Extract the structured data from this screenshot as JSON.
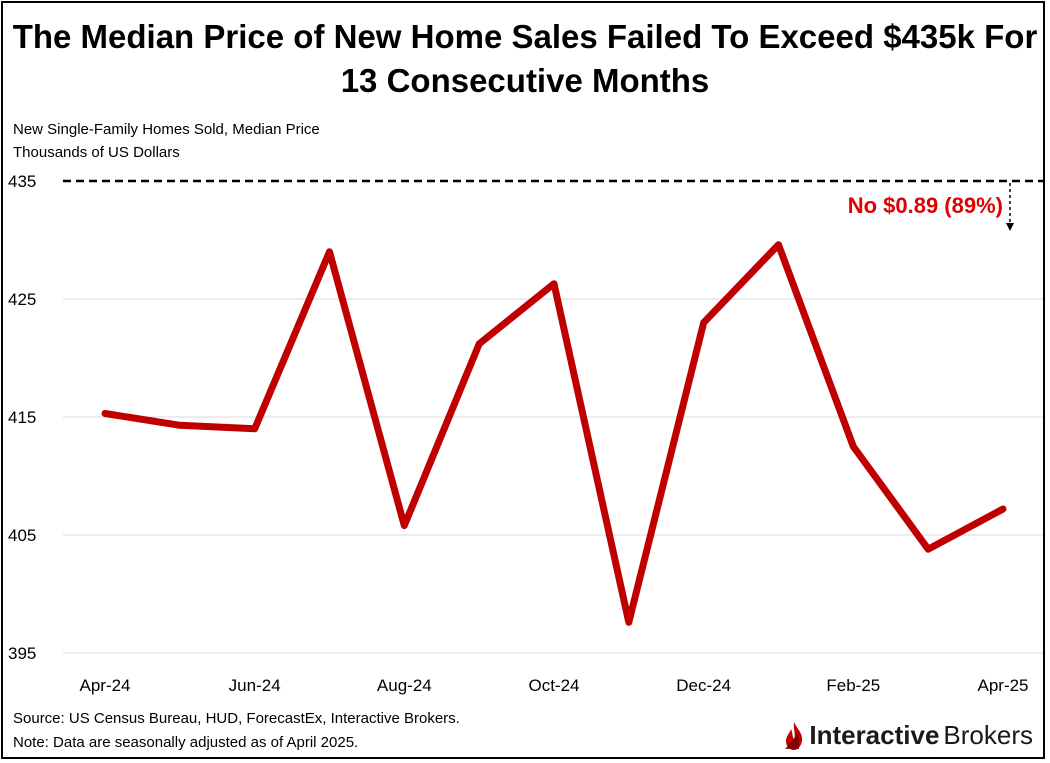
{
  "chart_data": {
    "type": "line",
    "title": "The Median Price of New Home Sales Failed To Exceed $435k For 13 Consecutive Months",
    "subtitle_lines": [
      "New Single-Family Homes Sold, Median Price",
      "Thousands of US Dollars"
    ],
    "x": [
      "Apr-24",
      "May-24",
      "Jun-24",
      "Jul-24",
      "Aug-24",
      "Sep-24",
      "Oct-24",
      "Nov-24",
      "Dec-24",
      "Jan-25",
      "Feb-25",
      "Mar-25",
      "Apr-25"
    ],
    "x_tick_labels": [
      "Apr-24",
      "Jun-24",
      "Aug-24",
      "Oct-24",
      "Dec-24",
      "Feb-25",
      "Apr-25"
    ],
    "series": [
      {
        "values": [
          415.3,
          414.3,
          414.0,
          429.0,
          405.8,
          421.2,
          426.3,
          397.6,
          423.0,
          429.6,
          412.5,
          403.8,
          407.2
        ]
      }
    ],
    "ylim": [
      395,
      435
    ],
    "yticks": [
      395,
      405,
      415,
      425,
      435
    ],
    "grid": true,
    "line_color": "#c00000",
    "threshold": {
      "value": 435,
      "style": "dashed",
      "color": "#000000"
    },
    "annotation": {
      "text": "No $0.89 (89%)",
      "color": "#e00000"
    }
  },
  "footer": {
    "source": "Source: US Census Bureau, HUD, ForecastEx, Interactive Brokers.",
    "note": "Note: Data are seasonally adjusted as of April 2025."
  },
  "logo": {
    "part1": "Interactive",
    "part2": "Brokers",
    "icon": "ib-flame-logo-icon",
    "color": "#c00000"
  }
}
